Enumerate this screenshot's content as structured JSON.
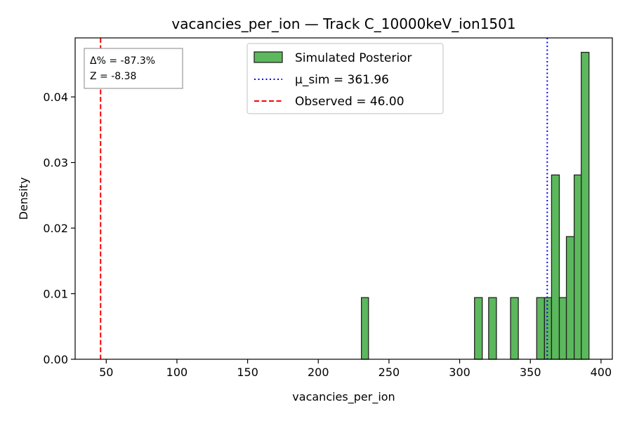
{
  "chart_data": {
    "type": "bar",
    "title": "vacancies_per_ion — Track C_10000keV_ion1501",
    "xlabel": "vacancies_per_ion",
    "ylabel": "Density",
    "xlim": [
      28,
      408
    ],
    "ylim": [
      0,
      0.049
    ],
    "xticks": [
      50,
      100,
      150,
      200,
      250,
      300,
      350,
      400
    ],
    "yticks": [
      0.0,
      0.01,
      0.02,
      0.03,
      0.04
    ],
    "xtick_labels": [
      "50",
      "100",
      "150",
      "200",
      "250",
      "300",
      "350",
      "400"
    ],
    "ytick_labels": [
      "0.00",
      "0.01",
      "0.02",
      "0.03",
      "0.04"
    ],
    "grid": false,
    "legend_position": "top-center",
    "histogram": {
      "name": "Simulated Posterior",
      "color": "#5cb85c",
      "edge_color": "#222222",
      "bins": [
        {
          "x0": 230.5,
          "x1": 235.5,
          "density": 0.0094
        },
        {
          "x0": 310.5,
          "x1": 316.0,
          "density": 0.0094
        },
        {
          "x0": 320.5,
          "x1": 326.0,
          "density": 0.0094
        },
        {
          "x0": 336.0,
          "x1": 341.5,
          "density": 0.0094
        },
        {
          "x0": 354.5,
          "x1": 360.0,
          "density": 0.0094
        },
        {
          "x0": 360.0,
          "x1": 365.0,
          "density": 0.0094
        },
        {
          "x0": 365.0,
          "x1": 370.5,
          "density": 0.0281
        },
        {
          "x0": 370.5,
          "x1": 375.5,
          "density": 0.0094
        },
        {
          "x0": 375.5,
          "x1": 381.0,
          "density": 0.0187
        },
        {
          "x0": 381.0,
          "x1": 386.0,
          "density": 0.0281
        },
        {
          "x0": 386.0,
          "x1": 391.5,
          "density": 0.0468
        }
      ]
    },
    "lines": [
      {
        "name": "μ_sim = 361.96",
        "x": 361.96,
        "color": "#0000ff",
        "style": "dotted"
      },
      {
        "name": "Observed = 46.00",
        "x": 46.0,
        "color": "#ff0000",
        "style": "dashed"
      }
    ],
    "stats_box": {
      "line1": "Δ% = -87.3%",
      "line2": "Z = -8.38"
    }
  }
}
